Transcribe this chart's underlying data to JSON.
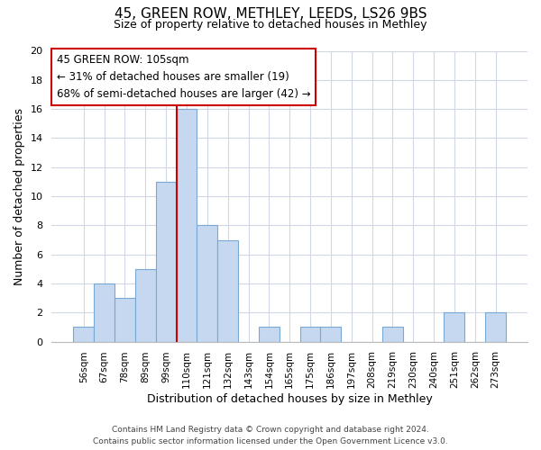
{
  "title1": "45, GREEN ROW, METHLEY, LEEDS, LS26 9BS",
  "title2": "Size of property relative to detached houses in Methley",
  "xlabel": "Distribution of detached houses by size in Methley",
  "ylabel": "Number of detached properties",
  "bin_labels": [
    "56sqm",
    "67sqm",
    "78sqm",
    "89sqm",
    "99sqm",
    "110sqm",
    "121sqm",
    "132sqm",
    "143sqm",
    "154sqm",
    "165sqm",
    "175sqm",
    "186sqm",
    "197sqm",
    "208sqm",
    "219sqm",
    "230sqm",
    "240sqm",
    "251sqm",
    "262sqm",
    "273sqm"
  ],
  "bar_heights": [
    1,
    4,
    3,
    5,
    11,
    16,
    8,
    7,
    0,
    1,
    0,
    1,
    1,
    0,
    0,
    1,
    0,
    0,
    2,
    0,
    2
  ],
  "bar_color": "#c5d8f0",
  "bar_edge_color": "#7aa8d4",
  "grid_color": "#d0d8e8",
  "annotation_box_text": "45 GREEN ROW: 105sqm\n← 31% of detached houses are smaller (19)\n68% of semi-detached houses are larger (42) →",
  "annotation_box_color": "#ffffff",
  "annotation_box_edge_color": "#cc0000",
  "vertical_line_color": "#cc0000",
  "ylim": [
    0,
    20
  ],
  "yticks": [
    0,
    2,
    4,
    6,
    8,
    10,
    12,
    14,
    16,
    18,
    20
  ],
  "footer1": "Contains HM Land Registry data © Crown copyright and database right 2024.",
  "footer2": "Contains public sector information licensed under the Open Government Licence v3.0.",
  "vline_index": 4.5
}
